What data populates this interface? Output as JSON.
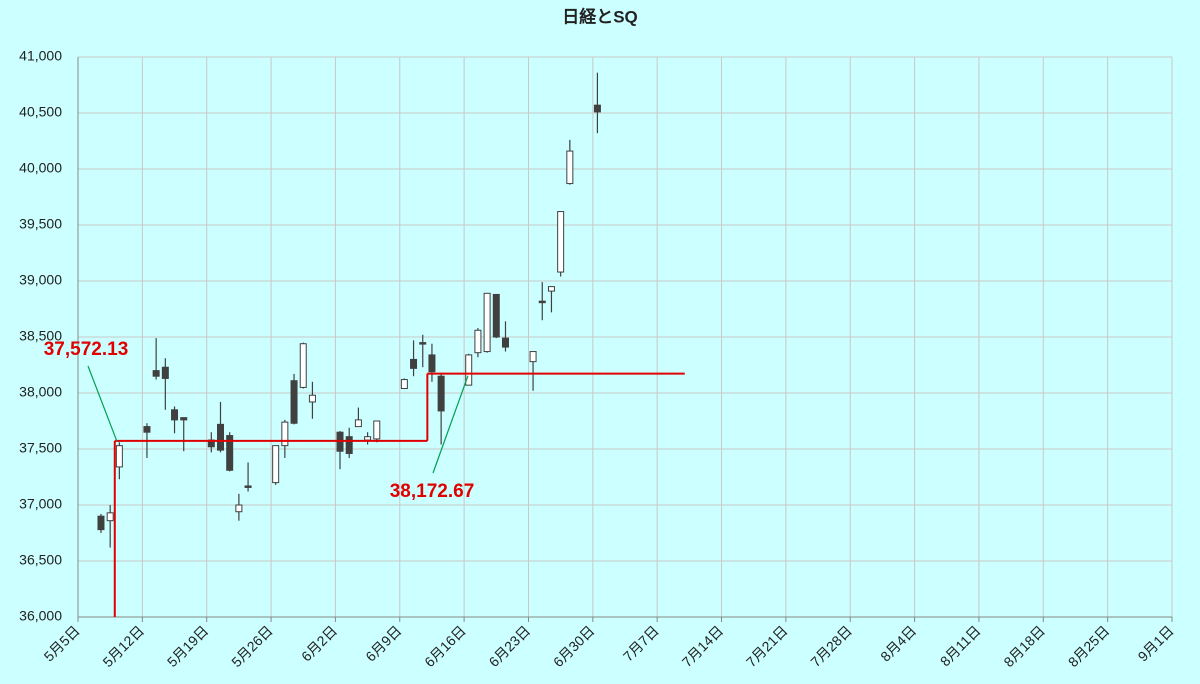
{
  "chart_data": {
    "type": "candlestick",
    "title": "日経とSQ",
    "ylim": [
      36000,
      41000
    ],
    "yticks": [
      {
        "value": 36000,
        "label": "36,000"
      },
      {
        "value": 36500,
        "label": "36,500"
      },
      {
        "value": 37000,
        "label": "37,000"
      },
      {
        "value": 37500,
        "label": "37,500"
      },
      {
        "value": 38000,
        "label": "38,000"
      },
      {
        "value": 38500,
        "label": "38,500"
      },
      {
        "value": 39000,
        "label": "39,000"
      },
      {
        "value": 39500,
        "label": "39,500"
      },
      {
        "value": 40000,
        "label": "40,000"
      },
      {
        "value": 40500,
        "label": "40,500"
      },
      {
        "value": 41000,
        "label": "41,000"
      }
    ],
    "xlim": [
      "05-05",
      "09-01"
    ],
    "xticks": [
      {
        "value": "05-05",
        "label": "5月5日"
      },
      {
        "value": "05-12",
        "label": "5月12日"
      },
      {
        "value": "05-19",
        "label": "5月19日"
      },
      {
        "value": "05-26",
        "label": "5月26日"
      },
      {
        "value": "06-02",
        "label": "6月2日"
      },
      {
        "value": "06-09",
        "label": "6月9日"
      },
      {
        "value": "06-16",
        "label": "6月16日"
      },
      {
        "value": "06-23",
        "label": "6月23日"
      },
      {
        "value": "06-30",
        "label": "6月30日"
      },
      {
        "value": "07-07",
        "label": "7月7日"
      },
      {
        "value": "07-14",
        "label": "7月14日"
      },
      {
        "value": "07-21",
        "label": "7月21日"
      },
      {
        "value": "07-28",
        "label": "7月28日"
      },
      {
        "value": "08-04",
        "label": "8月4日"
      },
      {
        "value": "08-11",
        "label": "8月11日"
      },
      {
        "value": "08-18",
        "label": "8月18日"
      },
      {
        "value": "08-25",
        "label": "8月25日"
      },
      {
        "value": "09-01",
        "label": "9月1日"
      }
    ],
    "grid": true,
    "up_color": "#ffffff",
    "down_color": "#404040",
    "edge_color": "#404040",
    "candles": {
      "x": [
        "05-07",
        "05-08",
        "05-09",
        "05-12",
        "05-13",
        "05-14",
        "05-15",
        "05-16",
        "05-19",
        "05-20",
        "05-21",
        "05-22",
        "05-23",
        "05-26",
        "05-27",
        "05-28",
        "05-29",
        "05-30",
        "06-02",
        "06-03",
        "06-04",
        "06-05",
        "06-06",
        "06-09",
        "06-10",
        "06-11",
        "06-12",
        "06-13",
        "06-16",
        "06-17",
        "06-18",
        "06-19",
        "06-20",
        "06-23",
        "06-24",
        "06-25",
        "06-26",
        "06-27",
        "06-30"
      ],
      "open": [
        36900,
        36860,
        37340,
        37700,
        38200,
        38230,
        37850,
        37780,
        37580,
        37720,
        37620,
        36940,
        37170,
        37200,
        37530,
        38110,
        38050,
        37920,
        37650,
        37610,
        37700,
        37580,
        37590,
        38040,
        38300,
        38450,
        38340,
        38150,
        38070,
        38360,
        38370,
        38880,
        38490,
        38280,
        38820,
        38910,
        39080,
        39870,
        40570
      ],
      "close": [
        36780,
        36930,
        37530,
        37650,
        38150,
        38130,
        37760,
        37760,
        37520,
        37490,
        37310,
        37000,
        37160,
        37530,
        37740,
        37730,
        38440,
        37980,
        37480,
        37460,
        37760,
        37610,
        37750,
        38120,
        38220,
        38440,
        38190,
        37840,
        38340,
        38560,
        38890,
        38500,
        38410,
        38370,
        38810,
        38950,
        39620,
        40160,
        40510
      ],
      "high": [
        36920,
        37000,
        37560,
        37730,
        38490,
        38310,
        37880,
        37780,
        37650,
        37920,
        37650,
        37100,
        37380,
        37530,
        37760,
        38170,
        38450,
        38100,
        37660,
        37690,
        37870,
        37650,
        37750,
        38130,
        38470,
        38520,
        38440,
        38170,
        38350,
        38580,
        38890,
        38880,
        38640,
        38370,
        38990,
        38950,
        39620,
        40260,
        40860
      ],
      "low": [
        36750,
        36620,
        37230,
        37420,
        38120,
        37850,
        37640,
        37480,
        37470,
        37470,
        37300,
        36860,
        37120,
        37180,
        37420,
        37720,
        38040,
        37770,
        37320,
        37420,
        37700,
        37540,
        37560,
        38040,
        38150,
        38230,
        38100,
        37540,
        38070,
        38320,
        38360,
        38490,
        38370,
        38020,
        38650,
        38720,
        39040,
        39860,
        40320
      ]
    },
    "sq": {
      "color": "#e00000",
      "annotation_color": "#00a050",
      "levels": [
        {
          "x": "05-09",
          "x_end": "06-12",
          "value": 37572.13,
          "label": "37,572.13"
        },
        {
          "x": "06-12",
          "x_end": "07-10",
          "value": 38172.67,
          "label": "38,172.67"
        }
      ]
    }
  }
}
